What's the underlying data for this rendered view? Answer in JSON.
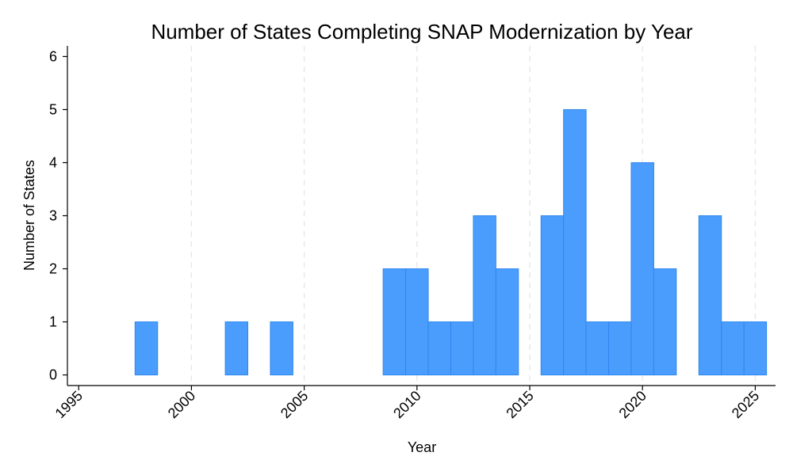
{
  "chart_data": {
    "type": "bar",
    "title": "Number of States Completing SNAP Modernization by Year",
    "xlabel": "Year",
    "ylabel": "Number of States",
    "x": [
      1998,
      2002,
      2004,
      2009,
      2010,
      2011,
      2012,
      2013,
      2014,
      2016,
      2017,
      2018,
      2019,
      2020,
      2021,
      2023,
      2024,
      2025
    ],
    "values": [
      1,
      1,
      1,
      2,
      2,
      1,
      1,
      3,
      2,
      3,
      5,
      1,
      1,
      4,
      2,
      3,
      1,
      1
    ],
    "xlim": [
      1994.5,
      2025.9
    ],
    "ylim": [
      -0.2,
      6.2
    ],
    "xticks": [
      "1995",
      "2000",
      "2005",
      "2010",
      "2015",
      "2020",
      "2025"
    ],
    "yticks": [
      "0",
      "1",
      "2",
      "3",
      "4",
      "5",
      "6"
    ],
    "grid": "vertical dashed at x ticks",
    "bar_color": "#4a9dfc",
    "bar_edge_color": "#2f86ee"
  }
}
